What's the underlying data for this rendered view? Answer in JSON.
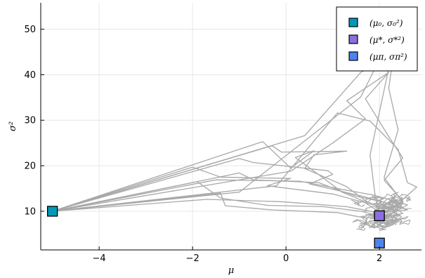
{
  "chart_data": {
    "type": "scatter",
    "title": "",
    "xlabel": "μ",
    "ylabel": "σ²",
    "xlim": [
      -5.25,
      2.9
    ],
    "ylim": [
      1.5,
      55.8
    ],
    "xticks": [
      -4,
      -2,
      0,
      2
    ],
    "xtick_labels": [
      "−4",
      "−2",
      "0",
      "2"
    ],
    "yticks": [
      10,
      20,
      30,
      40,
      50
    ],
    "ytick_labels": [
      "10",
      "20",
      "30",
      "40",
      "50"
    ],
    "grid": true,
    "legend_position": "top-right",
    "series": [
      {
        "name": "(μ₀, σ₀²)",
        "color": "#0099b9",
        "marker": "square",
        "points": [
          [
            -5.0,
            10.0
          ]
        ]
      },
      {
        "name": "(μ*, σ*²)",
        "color": "#8a6fdf",
        "marker": "square",
        "points": [
          [
            2.0,
            9.0
          ]
        ]
      },
      {
        "name": "(μπ, σπ²)",
        "color": "#4f82ef",
        "marker": "square",
        "points": [
          [
            2.0,
            3.0
          ]
        ]
      }
    ],
    "trajectories_color": "#a8a8a8",
    "trajectories": [
      [
        [
          -5.0,
          10.0
        ],
        [
          -0.5,
          25.3
        ],
        [
          0.1,
          19.5
        ],
        [
          0.6,
          23.3
        ],
        [
          0.2,
          21.8
        ],
        [
          0.8,
          17.3
        ],
        [
          1.2,
          14.2
        ],
        [
          1.6,
          12.5
        ],
        [
          1.9,
          10.5
        ],
        [
          2.1,
          9.8
        ],
        [
          2.4,
          10.6
        ],
        [
          2.2,
          8.9
        ],
        [
          2.0,
          9.0
        ]
      ],
      [
        [
          -5.0,
          10.0
        ],
        [
          -0.3,
          24.4
        ],
        [
          -0.1,
          23.0
        ],
        [
          1.3,
          23.2
        ],
        [
          0.6,
          22.4
        ],
        [
          0.4,
          19.4
        ],
        [
          1.3,
          15.4
        ],
        [
          1.7,
          12.3
        ],
        [
          2.1,
          10.4
        ],
        [
          2.3,
          8.1
        ],
        [
          2.0,
          9.0
        ]
      ],
      [
        [
          -5.0,
          10.0
        ],
        [
          -1.0,
          21.6
        ],
        [
          -0.7,
          20.7
        ],
        [
          0.9,
          18.9
        ],
        [
          1.0,
          18.1
        ],
        [
          0.5,
          16.0
        ],
        [
          1.6,
          13.4
        ],
        [
          2.2,
          11.7
        ],
        [
          2.5,
          9.5
        ],
        [
          1.8,
          8.3
        ],
        [
          2.0,
          9.0
        ]
      ],
      [
        [
          -5.0,
          10.0
        ],
        [
          -2.0,
          19.7
        ],
        [
          -1.4,
          17.5
        ],
        [
          0.1,
          17.2
        ],
        [
          -0.4,
          15.6
        ],
        [
          1.0,
          13.8
        ],
        [
          1.8,
          11.6
        ],
        [
          2.4,
          10.2
        ],
        [
          2.1,
          8.6
        ],
        [
          2.0,
          9.0
        ]
      ],
      [
        [
          -5.0,
          10.0
        ],
        [
          -1.0,
          18.4
        ],
        [
          -0.7,
          16.9
        ],
        [
          0.7,
          16.3
        ],
        [
          1.1,
          14.7
        ],
        [
          1.5,
          13.3
        ],
        [
          2.1,
          12.0
        ],
        [
          2.6,
          10.3
        ],
        [
          1.7,
          9.2
        ],
        [
          2.0,
          9.0
        ]
      ],
      [
        [
          -5.0,
          10.0
        ],
        [
          -1.5,
          16.9
        ],
        [
          0.3,
          16.6
        ],
        [
          1.2,
          14.8
        ],
        [
          1.9,
          13.5
        ],
        [
          2.6,
          11.4
        ],
        [
          2.3,
          9.6
        ],
        [
          2.0,
          9.0
        ]
      ],
      [
        [
          -5.0,
          10.0
        ],
        [
          -1.9,
          16.5
        ],
        [
          -1.4,
          12.9
        ],
        [
          -0.4,
          11.3
        ],
        [
          0.8,
          11.0
        ],
        [
          1.6,
          10.0
        ],
        [
          2.0,
          9.0
        ]
      ],
      [
        [
          -5.0,
          10.0
        ],
        [
          -1.4,
          14.0
        ],
        [
          -1.3,
          11.2
        ],
        [
          -0.3,
          10.3
        ],
        [
          1.1,
          9.7
        ],
        [
          1.7,
          8.5
        ],
        [
          2.0,
          9.0
        ]
      ],
      [
        [
          -5.0,
          10.0
        ],
        [
          -1.7,
          12.6
        ],
        [
          -0.1,
          12.1
        ],
        [
          1.3,
          11.0
        ],
        [
          1.9,
          9.8
        ],
        [
          2.0,
          9.0
        ]
      ],
      [
        [
          -5.0,
          10.0
        ],
        [
          0.1,
          18.8
        ],
        [
          1.0,
          25.0
        ],
        [
          1.7,
          30.3
        ],
        [
          1.3,
          34.3
        ],
        [
          2.2,
          40.5
        ],
        [
          1.7,
          34.7
        ],
        [
          2.2,
          26.4
        ],
        [
          2.5,
          21.7
        ],
        [
          2.1,
          16.8
        ],
        [
          2.5,
          12.3
        ],
        [
          2.0,
          9.0
        ]
      ],
      [
        [
          -5.0,
          10.0
        ],
        [
          -1.0,
          14.2
        ],
        [
          1.6,
          35.1
        ],
        [
          2.1,
          45.4
        ],
        [
          2.2,
          41.4
        ],
        [
          2.0,
          31.8
        ],
        [
          1.8,
          22.4
        ],
        [
          1.9,
          14.0
        ],
        [
          2.0,
          9.0
        ]
      ],
      [
        [
          -5.0,
          10.0
        ],
        [
          -0.2,
          15.6
        ],
        [
          1.1,
          31.6
        ],
        [
          1.8,
          29.8
        ],
        [
          2.4,
          23.6
        ],
        [
          2.6,
          16.3
        ],
        [
          2.8,
          15.3
        ],
        [
          2.4,
          11.7
        ],
        [
          2.0,
          9.0
        ]
      ],
      [
        [
          -5.0,
          10.0
        ],
        [
          0.4,
          26.6
        ],
        [
          1.6,
          40.5
        ],
        [
          2.3,
          44.3
        ],
        [
          2.2,
          37.0
        ],
        [
          2.4,
          27.9
        ],
        [
          2.1,
          17.4
        ],
        [
          2.5,
          12.0
        ],
        [
          2.0,
          9.0
        ]
      ]
    ],
    "noise_trail_color": "#a8a8a8"
  }
}
